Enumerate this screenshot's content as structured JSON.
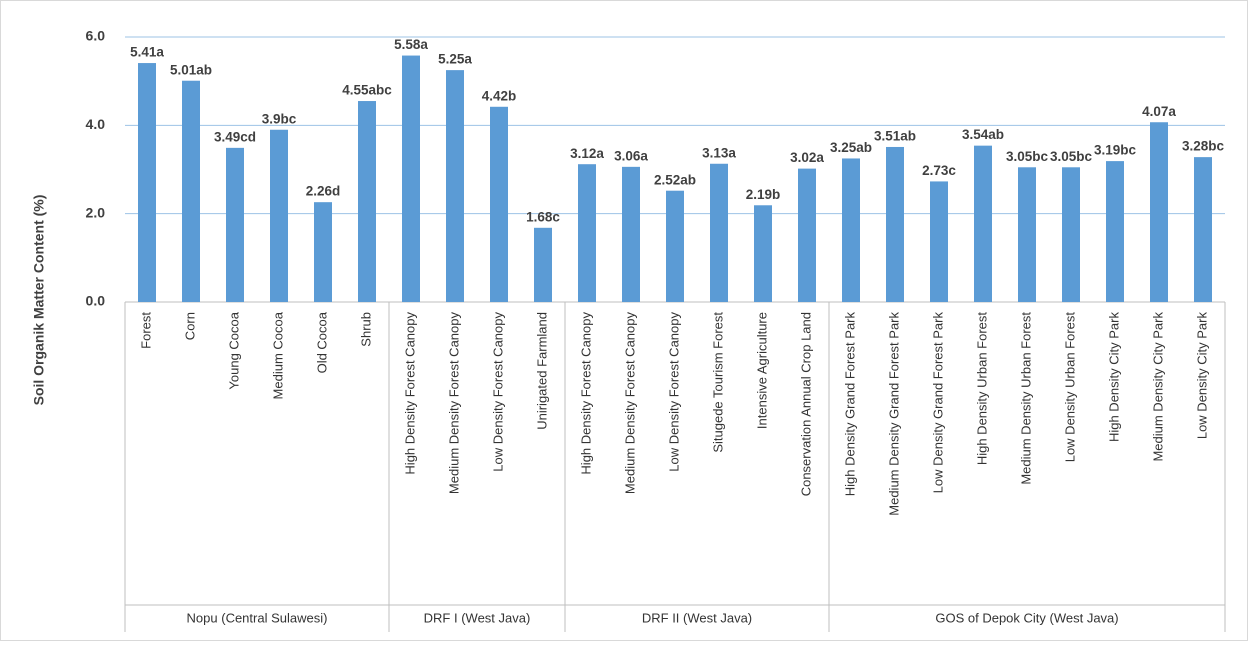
{
  "chart_data": {
    "type": "bar",
    "y_label": "Soil Organik Matter Content (%)",
    "ylim": [
      0,
      6
    ],
    "yticks": [
      {
        "value": 0,
        "label": "0.0"
      },
      {
        "value": 2,
        "label": "2.0"
      },
      {
        "value": 4,
        "label": "4.0"
      },
      {
        "value": 6,
        "label": "6.0"
      }
    ],
    "grid": true,
    "color": "#5b9bd5",
    "groups": [
      {
        "label": "Nopu (Central Sulawesi)",
        "categories": [
          "Forest",
          "Corn",
          "Young Cocoa",
          "Medium Cocoa",
          "Old Cocoa",
          "Shrub"
        ],
        "values": [
          5.41,
          5.01,
          3.49,
          3.9,
          2.26,
          4.55
        ],
        "value_labels": [
          "5.41a",
          "5.01ab",
          "3.49cd",
          "3.9bc",
          "2.26d",
          "4.55abc"
        ]
      },
      {
        "label": "DRF I (West Java)",
        "categories": [
          "High Density Forest Canopy",
          "Medium Density Forest Canopy",
          "Low Density Forest Canopy",
          "Unirigated Farmland"
        ],
        "values": [
          5.58,
          5.25,
          4.42,
          1.68
        ],
        "value_labels": [
          "5.58a",
          "5.25a",
          "4.42b",
          "1.68c"
        ]
      },
      {
        "label": "DRF II (West Java)",
        "categories": [
          "High Density Forest Canopy",
          "Medium Density Forest Canopy",
          "Low Density Forest Canopy",
          "Situgede Tourism Forest",
          "Intensive Agriculture",
          "Conservation Annual Crop Land"
        ],
        "values": [
          3.12,
          3.06,
          2.52,
          3.13,
          2.19,
          3.02
        ],
        "value_labels": [
          "3.12a",
          "3.06a",
          "2.52ab",
          "3.13a",
          "2.19b",
          "3.02a"
        ]
      },
      {
        "label": "GOS of Depok City (West Java)",
        "categories": [
          "High Density Grand Forest Park",
          "Medium Density Grand Forest Park",
          "Low Density Grand Forest Park",
          "High Density Urban Forest",
          "Medium Density Urban Forest",
          "Low Density Urban Forest",
          "High Density City Park",
          "Medium Density City Park",
          "Low Density City Park"
        ],
        "values": [
          3.25,
          3.51,
          2.73,
          3.54,
          3.05,
          3.05,
          3.19,
          4.07,
          3.28
        ],
        "value_labels": [
          "3.25ab",
          "3.51ab",
          "2.73c",
          "3.54ab",
          "3.05bc",
          "3.05bc",
          "3.19bc",
          "4.07a",
          "3.28bc"
        ]
      }
    ]
  }
}
